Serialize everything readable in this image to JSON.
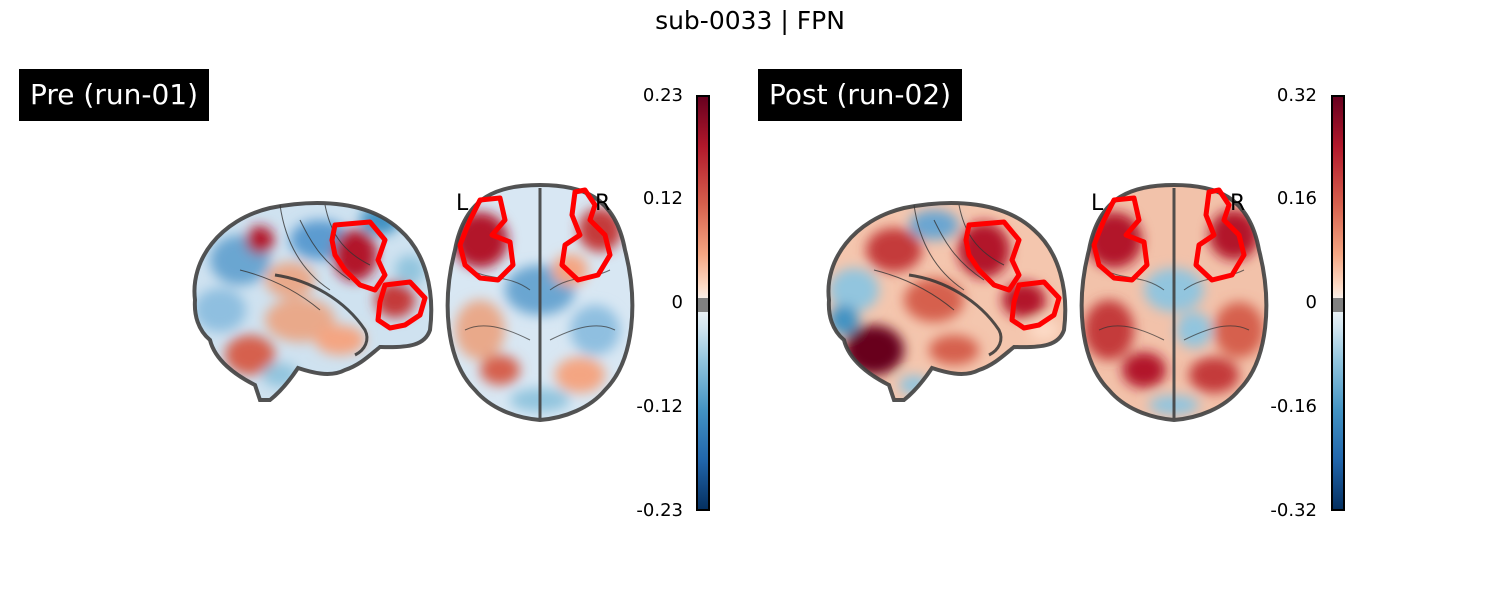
{
  "figure": {
    "title": "sub-0033 | FPN"
  },
  "panels": [
    {
      "label": "Pre (run-01)",
      "orientation_left": "L",
      "orientation_right": "R",
      "colorbar": {
        "colormap": "RdBu_r",
        "ticks": [
          "0.23",
          "0.12",
          "0",
          "-0.12",
          "-0.23"
        ],
        "vmin": -0.23,
        "vmax": 0.23
      }
    },
    {
      "label": "Post (run-02)",
      "orientation_left": "L",
      "orientation_right": "R",
      "colorbar": {
        "colormap": "RdBu_r",
        "ticks": [
          "0.32",
          "0.16",
          "0",
          "-0.16",
          "-0.32"
        ],
        "vmin": -0.32,
        "vmax": 0.32
      }
    }
  ],
  "colors": {
    "positive": "#b2182b",
    "negative": "#2166ac",
    "roi_outline": "#ff0000",
    "brain_outline": "#404040",
    "threshold_band": "#808080"
  }
}
